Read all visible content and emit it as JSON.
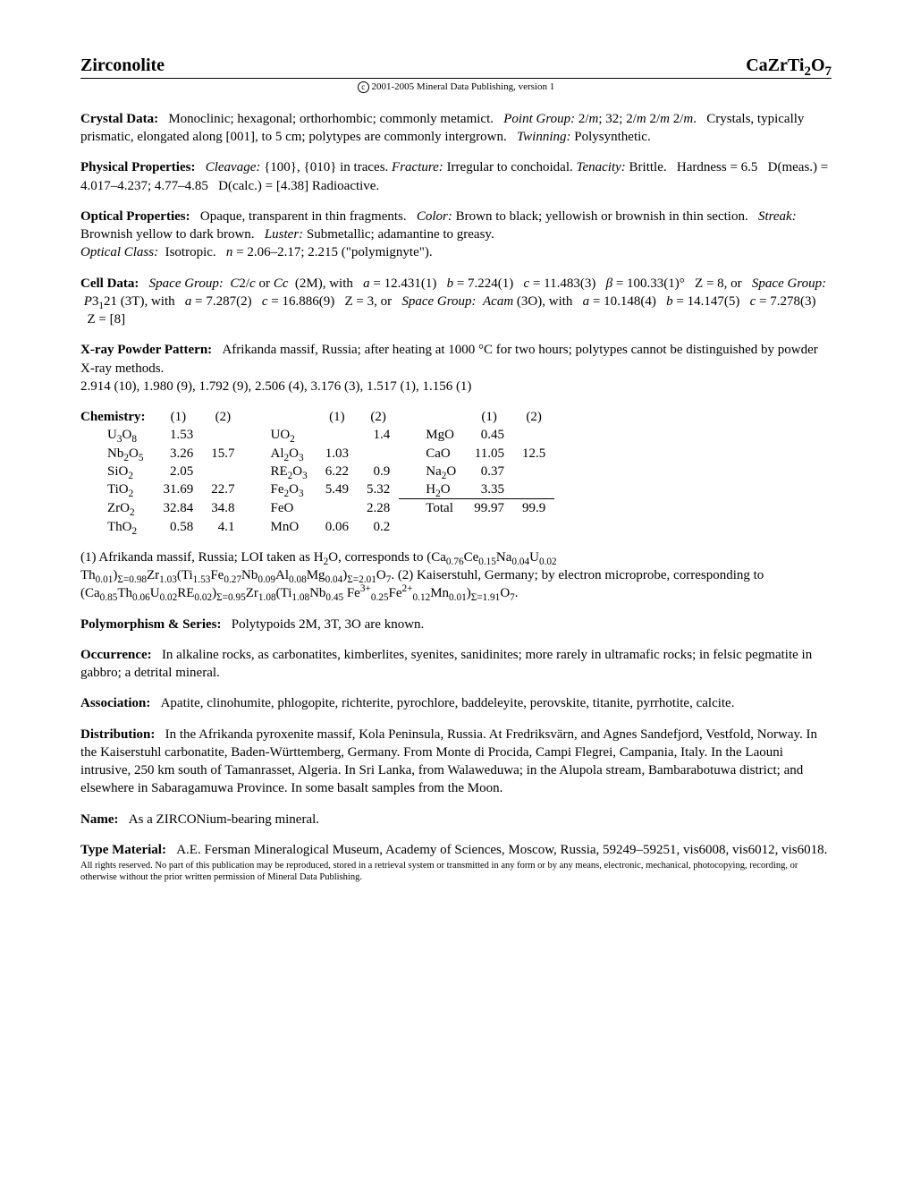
{
  "header": {
    "mineral": "Zirconolite",
    "formula_html": "CaZrTi<sub>2</sub>O<sub>7</sub>"
  },
  "copyright": {
    "symbol": "c",
    "text": "2001-2005 Mineral Data Publishing, version 1"
  },
  "crystal_data": {
    "label": "Crystal Data:",
    "body_html": "Monoclinic; hexagonal; orthorhombic; commonly metamict. &nbsp;&nbsp;<span class=\"italic\">Point Group:</span> 2/<span class=\"italic\">m</span>; 32; 2/<span class=\"italic\">m</span> 2/<span class=\"italic\">m</span> 2/<span class=\"italic\">m</span>. &nbsp;&nbsp;Crystals, typically prismatic, elongated along [001], to 5 cm; polytypes are commonly intergrown. &nbsp;&nbsp;<span class=\"italic\">Twinning:</span> Polysynthetic."
  },
  "physical": {
    "label": "Physical Properties:",
    "body_html": "&nbsp;&nbsp;<span class=\"italic\">Cleavage:</span> {100}, {010} in traces. <span class=\"italic\">Fracture:</span> Irregular to conchoidal. <span class=\"italic\">Tenacity:</span> Brittle. &nbsp;&nbsp;Hardness = 6.5 &nbsp;&nbsp;D(meas.) = 4.017–4.237; 4.77–4.85 &nbsp;&nbsp;D(calc.) = [4.38] Radioactive."
  },
  "optical": {
    "label": "Optical Properties:",
    "body_html": "Opaque, transparent in thin fragments. &nbsp;&nbsp;<span class=\"italic\">Color:</span> Brown to black; yellowish or brownish in thin section. &nbsp;&nbsp;<span class=\"italic\">Streak:</span> Brownish yellow to dark brown. &nbsp;&nbsp;<span class=\"italic\">Luster:</span> Submetallic; adamantine to greasy.<br><span class=\"italic\">Optical Class:</span> &nbsp;Isotropic. &nbsp;&nbsp;<span class=\"italic\">n</span> = 2.06–2.17; 2.215 (\"polymignyte\")."
  },
  "cell": {
    "label": "Cell Data:",
    "body_html": "<span class=\"italic\">Space Group:</span> &nbsp;<span class=\"italic\">C</span>2/<span class=\"italic\">c</span> or <span class=\"italic\">Cc</span> &nbsp;(2M), with &nbsp;&nbsp;<span class=\"italic\">a</span> = 12.431(1) &nbsp;&nbsp;<span class=\"italic\">b</span> = 7.224(1) &nbsp;&nbsp;<span class=\"italic\">c</span> = 11.483(3) &nbsp;&nbsp;<span class=\"italic\">β</span> = 100.33(1)° &nbsp;&nbsp;Z = 8, or &nbsp;&nbsp;<span class=\"italic\">Space Group:</span> &nbsp;<span class=\"italic\">P</span>3<sub>1</sub>21 (3T), with &nbsp;&nbsp;<span class=\"italic\">a</span> = 7.287(2) &nbsp;&nbsp;<span class=\"italic\">c</span> = 16.886(9) &nbsp;&nbsp;Z = 3, or &nbsp;&nbsp;<span class=\"italic\">Space Group:</span> &nbsp;<span class=\"italic\">Acam</span> (3O), with &nbsp;&nbsp;<span class=\"italic\">a</span> = 10.148(4) &nbsp;&nbsp;<span class=\"italic\">b</span> = 14.147(5) &nbsp;&nbsp;<span class=\"italic\">c</span> = 7.278(3) &nbsp;&nbsp;Z = [8]"
  },
  "xray": {
    "label": "X-ray Powder Pattern:",
    "body_html": "Afrikanda massif, Russia; after heating at 1000 °C for two hours; polytypes cannot be distinguished by powder X-ray methods.<br>2.914 (10), 1.980 (9), 1.792 (9), 2.506 (4), 3.176 (3), 1.517 (1), 1.156 (1)"
  },
  "chemistry": {
    "label": "Chemistry:",
    "col_headers": [
      "(1)",
      "(2)",
      "(1)",
      "(2)",
      "(1)",
      "(2)"
    ],
    "rows": [
      {
        "a_html": "U<sub>3</sub>O<sub>8</sub>",
        "a1": "1.53",
        "a2": "",
        "b_html": "UO<sub>2</sub>",
        "b1": "",
        "b2": "1.4",
        "c_html": "MgO",
        "c1": "0.45",
        "c2": ""
      },
      {
        "a_html": "Nb<sub>2</sub>O<sub>5</sub>",
        "a1": "3.26",
        "a2": "15.7",
        "b_html": "Al<sub>2</sub>O<sub>3</sub>",
        "b1": "1.03",
        "b2": "",
        "c_html": "CaO",
        "c1": "11.05",
        "c2": "12.5"
      },
      {
        "a_html": "SiO<sub>2</sub>",
        "a1": "2.05",
        "a2": "",
        "b_html": "RE<sub>2</sub>O<sub>3</sub>",
        "b1": "6.22",
        "b2": "0.9",
        "c_html": "Na<sub>2</sub>O",
        "c1": "0.37",
        "c2": ""
      },
      {
        "a_html": "TiO<sub>2</sub>",
        "a1": "31.69",
        "a2": "22.7",
        "b_html": "Fe<sub>2</sub>O<sub>3</sub>",
        "b1": "5.49",
        "b2": "5.32",
        "c_html": "H<sub>2</sub>O",
        "c1": "3.35",
        "c2": ""
      },
      {
        "a_html": "ZrO<sub>2</sub>",
        "a1": "32.84",
        "a2": "34.8",
        "b_html": "FeO",
        "b1": "",
        "b2": "2.28",
        "c_html": "Total",
        "c1": "99.97",
        "c2": "99.9",
        "is_total": true
      },
      {
        "a_html": "ThO<sub>2</sub>",
        "a1": "0.58",
        "a2": "4.1",
        "b_html": "MnO",
        "b1": "0.06",
        "b2": "0.2",
        "c_html": "",
        "c1": "",
        "c2": ""
      }
    ],
    "notes_html": "(1) Afrikanda massif, Russia; LOI taken as H<sub>2</sub>O, corresponds to (Ca<sub>0.76</sub>Ce<sub>0.15</sub>Na<sub>0.04</sub>U<sub>0.02</sub> Th<sub>0.01</sub>)<sub>Σ=0.98</sub>Zr<sub>1.03</sub>(Ti<sub>1.53</sub>Fe<sub>0.27</sub>Nb<sub>0.09</sub>Al<sub>0.08</sub>Mg<sub>0.04</sub>)<sub>Σ=2.01</sub>O<sub>7</sub>. (2) Kaiserstuhl, Germany; by electron microprobe, corresponding to (Ca<sub>0.85</sub>Th<sub>0.06</sub>U<sub>0.02</sub>RE<sub>0.02</sub>)<sub>Σ=0.95</sub>Zr<sub>1.08</sub>(Ti<sub>1.08</sub>Nb<sub>0.45</sub> Fe<sup>3+</sup><sub>0.25</sub>Fe<sup>2+</sup><sub>0.12</sub>Mn<sub>0.01</sub>)<sub>Σ=1.91</sub>O<sub>7</sub>."
  },
  "polymorphism": {
    "label": "Polymorphism & Series:",
    "body": "Polytypoids 2M, 3T, 3O are known."
  },
  "occurrence": {
    "label": "Occurrence:",
    "body": "In alkaline rocks, as carbonatites, kimberlites, syenites, sanidinites; more rarely in ultramafic rocks; in felsic pegmatite in gabbro; a detrital mineral."
  },
  "association": {
    "label": "Association:",
    "body": "Apatite, clinohumite, phlogopite, richterite, pyrochlore, baddeleyite, perovskite, titanite, pyrrhotite, calcite."
  },
  "distribution": {
    "label": "Distribution:",
    "body": "In the Afrikanda pyroxenite massif, Kola Peninsula, Russia. At Fredriksvärn, and Agnes Sandefjord, Vestfold, Norway. In the Kaiserstuhl carbonatite, Baden-Württemberg, Germany. From Monte di Procida, Campi Flegrei, Campania, Italy. In the Laouni intrusive, 250 km south of Tamanrasset, Algeria. In Sri Lanka, from Walaweduwa; in the Alupola stream, Bambarabotuwa district; and elsewhere in Sabaragamuwa Province. In some basalt samples from the Moon."
  },
  "name": {
    "label": "Name:",
    "body": "As a ZIRCONium-bearing mineral."
  },
  "type_material": {
    "label": "Type Material:",
    "body": "A.E. Fersman Mineralogical Museum, Academy of Sciences, Moscow, Russia, 59249–59251, vis6008, vis6012, vis6018."
  },
  "footer": "All rights reserved. No part of this publication may be reproduced, stored in a retrieval system or transmitted in any form or by any means, electronic, mechanical, photocopying, recording, or otherwise without the prior written permission of Mineral Data Publishing."
}
